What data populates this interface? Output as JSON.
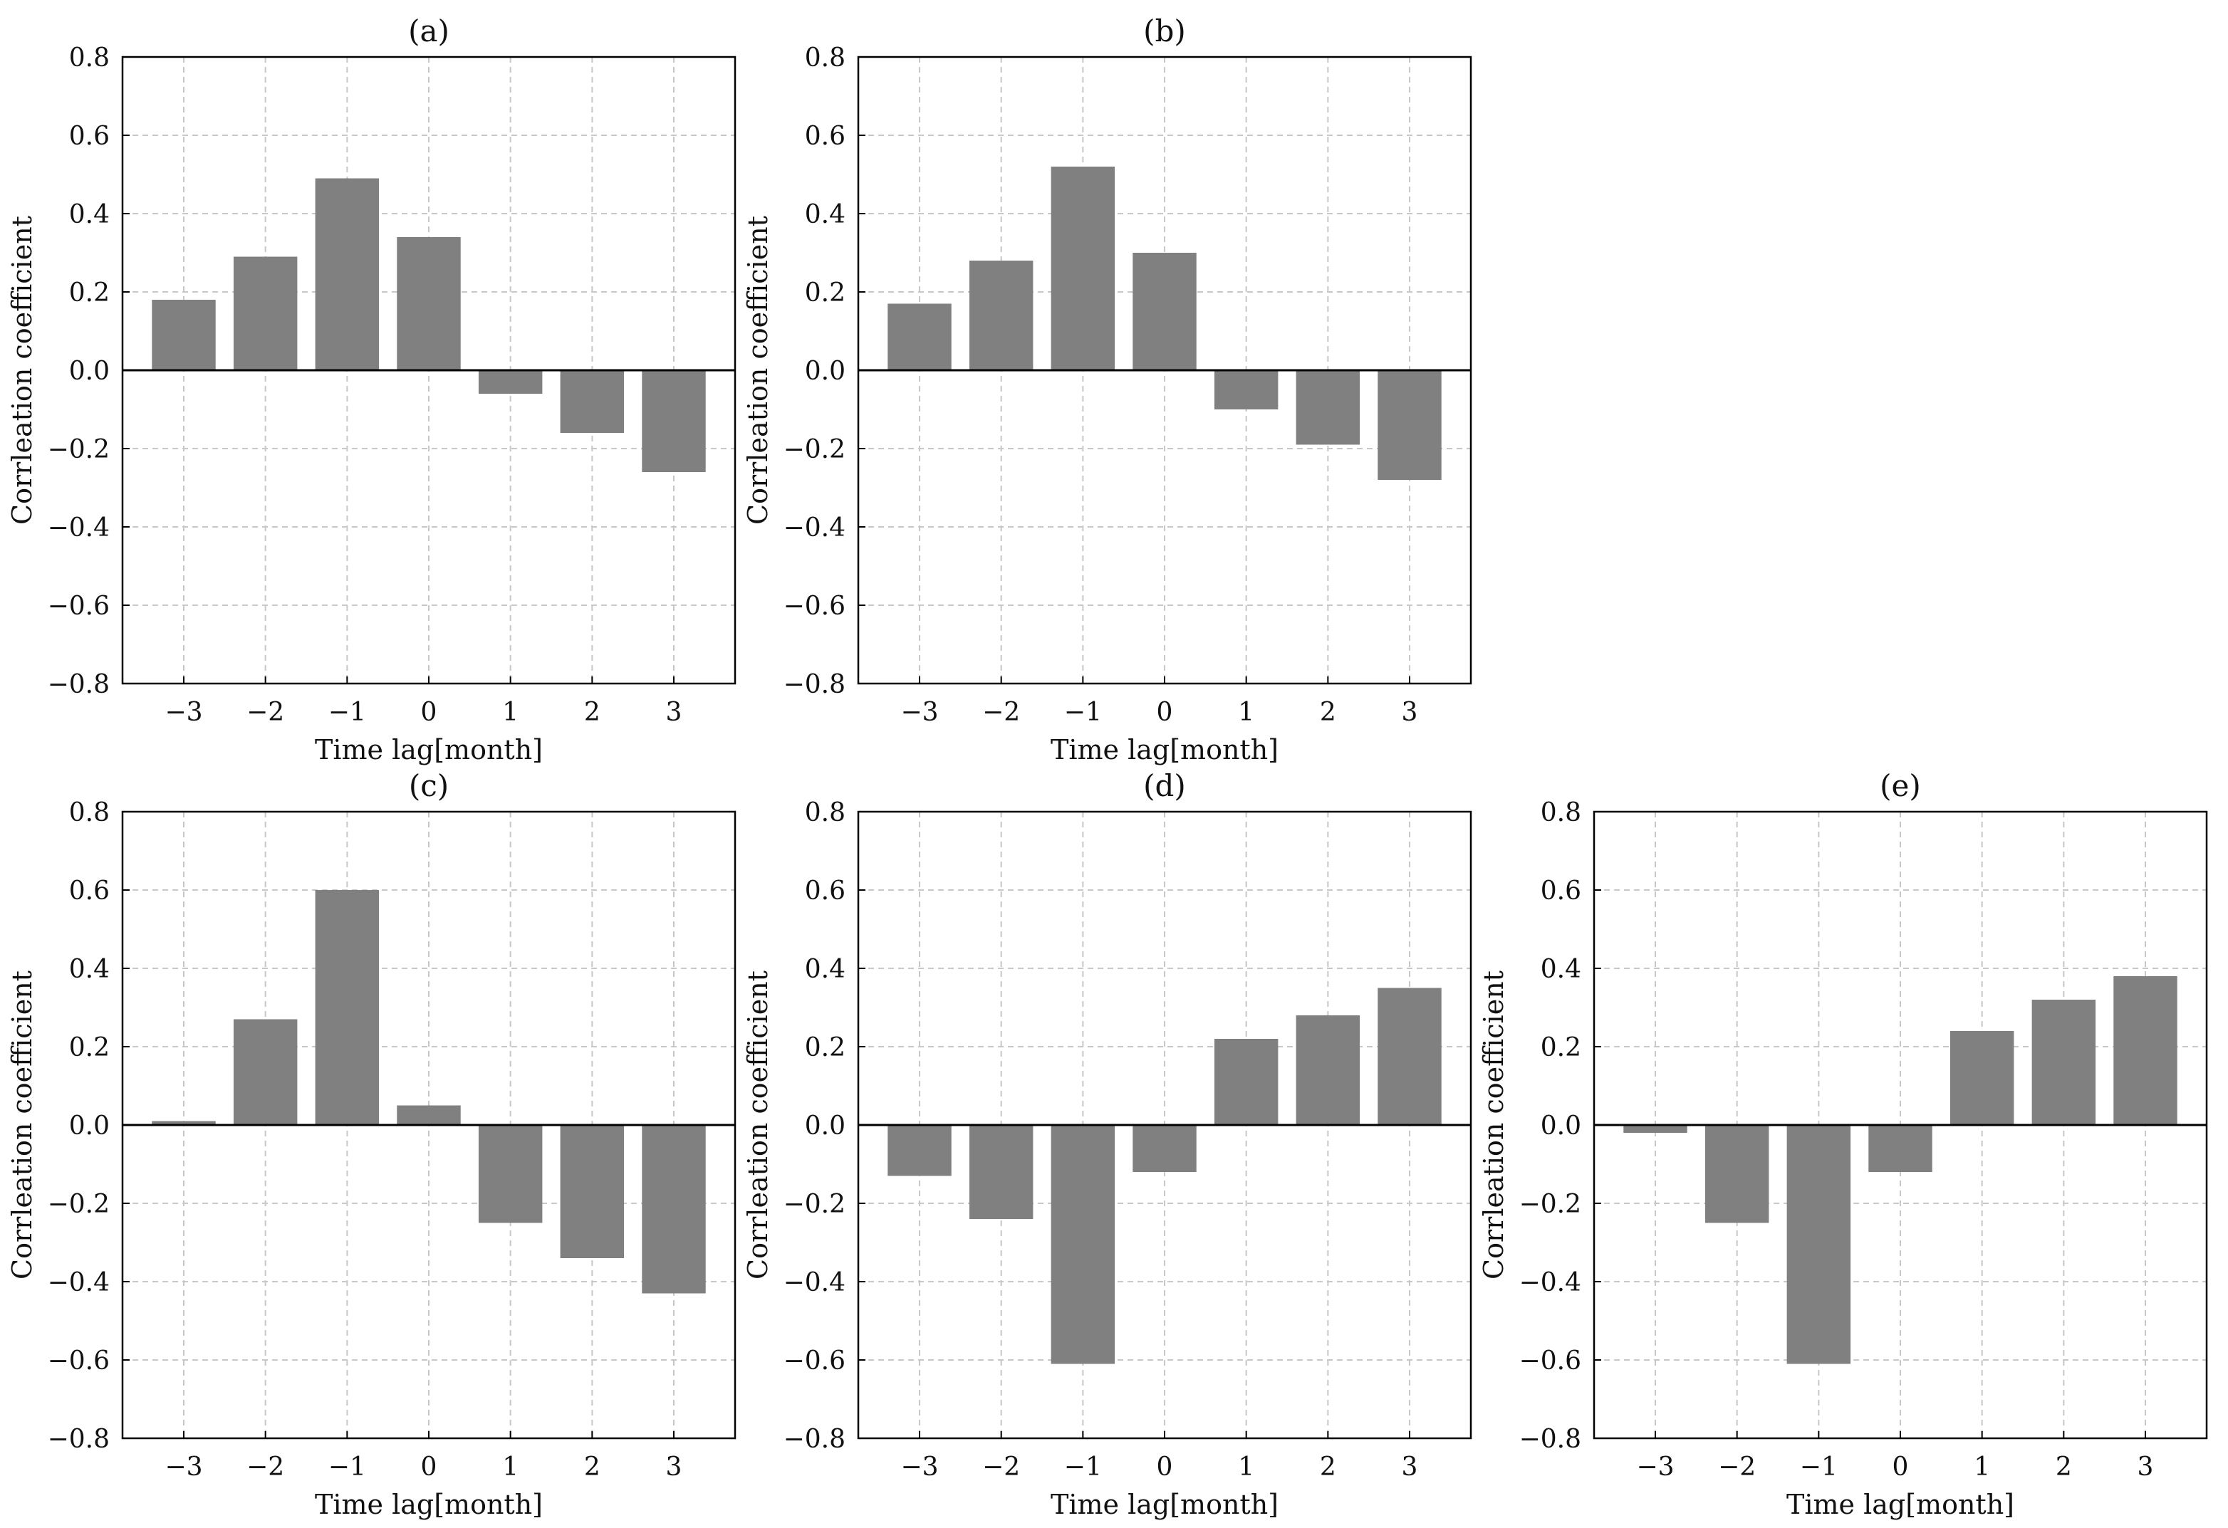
{
  "figure": {
    "colors": {
      "bar": "#808080",
      "grid": "#c8c8c8",
      "axis": "#000000",
      "background": "#ffffff"
    }
  },
  "chart_data": [
    {
      "type": "bar",
      "title": "(a)",
      "categories": [
        "−3",
        "−2",
        "−1",
        "0",
        "1",
        "2",
        "3"
      ],
      "values": [
        0.18,
        0.29,
        0.49,
        0.34,
        -0.06,
        -0.16,
        -0.26
      ],
      "xlabel": "Time lag[month]",
      "ylabel": "Corrleation coefficient",
      "ylim": [
        -0.8,
        0.8
      ],
      "yticks": [
        0.8,
        0.6,
        0.4,
        0.2,
        0.0,
        -0.2,
        -0.4,
        -0.6,
        -0.8
      ],
      "ytick_labels": [
        "0.8",
        "0.6",
        "0.4",
        "0.2",
        "0.0",
        "−0.2",
        "−0.4",
        "−0.6",
        "−0.8"
      ],
      "grid": true
    },
    {
      "type": "bar",
      "title": "(b)",
      "categories": [
        "−3",
        "−2",
        "−1",
        "0",
        "1",
        "2",
        "3"
      ],
      "values": [
        0.17,
        0.28,
        0.52,
        0.3,
        -0.1,
        -0.19,
        -0.28
      ],
      "xlabel": "Time lag[month]",
      "ylabel": "Corrleation coefficient",
      "ylim": [
        -0.8,
        0.8
      ],
      "yticks": [
        0.8,
        0.6,
        0.4,
        0.2,
        0.0,
        -0.2,
        -0.4,
        -0.6,
        -0.8
      ],
      "ytick_labels": [
        "0.8",
        "0.6",
        "0.4",
        "0.2",
        "0.0",
        "−0.2",
        "−0.4",
        "−0.6",
        "−0.8"
      ],
      "grid": true
    },
    {
      "type": "bar",
      "title": "(c)",
      "categories": [
        "−3",
        "−2",
        "−1",
        "0",
        "1",
        "2",
        "3"
      ],
      "values": [
        0.01,
        0.27,
        0.6,
        0.05,
        -0.25,
        -0.34,
        -0.43
      ],
      "xlabel": "Time lag[month]",
      "ylabel": "Corrleation coefficient",
      "ylim": [
        -0.8,
        0.8
      ],
      "yticks": [
        0.8,
        0.6,
        0.4,
        0.2,
        0.0,
        -0.2,
        -0.4,
        -0.6,
        -0.8
      ],
      "ytick_labels": [
        "0.8",
        "0.6",
        "0.4",
        "0.2",
        "0.0",
        "−0.2",
        "−0.4",
        "−0.6",
        "−0.8"
      ],
      "grid": true
    },
    {
      "type": "bar",
      "title": "(d)",
      "categories": [
        "−3",
        "−2",
        "−1",
        "0",
        "1",
        "2",
        "3"
      ],
      "values": [
        -0.13,
        -0.24,
        -0.61,
        -0.12,
        0.22,
        0.28,
        0.35
      ],
      "xlabel": "Time lag[month]",
      "ylabel": "Corrleation coefficient",
      "ylim": [
        -0.8,
        0.8
      ],
      "yticks": [
        0.8,
        0.6,
        0.4,
        0.2,
        0.0,
        -0.2,
        -0.4,
        -0.6,
        -0.8
      ],
      "ytick_labels": [
        "0.8",
        "0.6",
        "0.4",
        "0.2",
        "0.0",
        "−0.2",
        "−0.4",
        "−0.6",
        "−0.8"
      ],
      "grid": true
    },
    {
      "type": "bar",
      "title": "(e)",
      "categories": [
        "−3",
        "−2",
        "−1",
        "0",
        "1",
        "2",
        "3"
      ],
      "values": [
        -0.02,
        -0.25,
        -0.61,
        -0.12,
        0.24,
        0.32,
        0.38
      ],
      "xlabel": "Time lag[month]",
      "ylabel": "Corrleation coefficient",
      "ylim": [
        -0.8,
        0.8
      ],
      "yticks": [
        0.8,
        0.6,
        0.4,
        0.2,
        0.0,
        -0.2,
        -0.4,
        -0.6,
        -0.8
      ],
      "ytick_labels": [
        "0.8",
        "0.6",
        "0.4",
        "0.2",
        "0.0",
        "−0.2",
        "−0.4",
        "−0.6",
        "−0.8"
      ],
      "grid": true
    }
  ]
}
